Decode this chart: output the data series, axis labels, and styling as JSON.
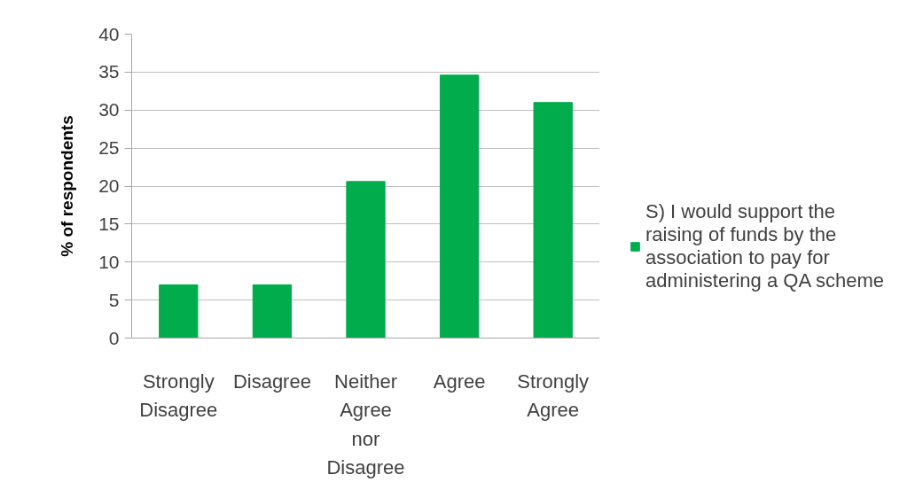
{
  "chart_data": {
    "type": "bar",
    "ylabel": "% of respondents",
    "categories": [
      "Strongly Disagree",
      "Disagree",
      "Neither Agree nor Disagree",
      "Agree",
      "Strongly Agree"
    ],
    "series": [
      {
        "name": "S) I would support the raising of funds by the association to pay for administering a QA scheme",
        "color": "#00ac4c",
        "values": [
          7.0,
          7.0,
          20.6,
          34.6,
          31.0
        ]
      }
    ],
    "ylim": [
      0,
      40
    ],
    "yticks": [
      0,
      5,
      10,
      15,
      20,
      25,
      30,
      35,
      40
    ],
    "grid": "y",
    "legend": "right"
  }
}
